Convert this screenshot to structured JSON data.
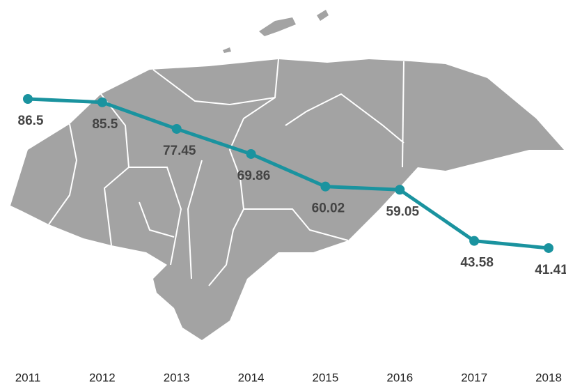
{
  "chart_data": {
    "type": "line",
    "categories": [
      "2011",
      "2012",
      "2013",
      "2014",
      "2015",
      "2016",
      "2017",
      "2018"
    ],
    "series": [
      {
        "color": "#1a939f",
        "values": [
          86.5,
          85.5,
          77.45,
          69.86,
          60.02,
          59.05,
          43.58,
          41.41
        ]
      }
    ],
    "ylim": [
      10,
      110
    ]
  }
}
